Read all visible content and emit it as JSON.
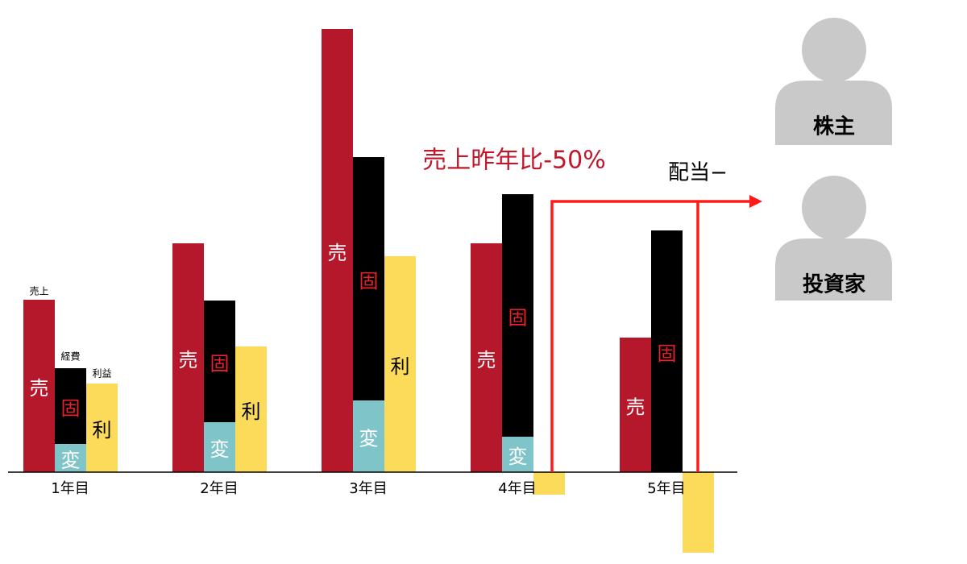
{
  "chart_data": {
    "type": "stacked-bar",
    "categories": [
      "1年目",
      "2年目",
      "3年目",
      "4年目",
      "5年目"
    ],
    "series": [
      {
        "name": "売上",
        "color": "#b5182b",
        "text_color": "#ffffff",
        "bar_labels": [
          "売",
          "売",
          "売",
          "売",
          "売"
        ],
        "values": [
          214,
          284,
          550,
          284,
          167
        ]
      },
      {
        "color": "#7ec4c8",
        "text_color": "#ffffff",
        "bar_labels": [
          "変",
          "変",
          "変",
          "変",
          null
        ],
        "values": [
          35,
          62,
          89,
          44,
          0
        ]
      },
      {
        "color": "#000000",
        "text_color": "#e8212b",
        "bar_labels": [
          "固",
          "固",
          "固",
          "固",
          "固"
        ],
        "values": [
          94,
          151,
          302,
          301,
          300
        ]
      },
      {
        "name": "利益",
        "color": "#fddb5a",
        "text_color": "#000000",
        "bar_labels": [
          "利",
          "利",
          "利",
          null,
          null
        ],
        "values": [
          110,
          156,
          268,
          -28,
          -100
        ]
      }
    ],
    "expense_name": "経費",
    "annotation": "売上昨年比-50%",
    "dividend_label": "配当−",
    "recipients": [
      "株主",
      "投資家"
    ]
  }
}
